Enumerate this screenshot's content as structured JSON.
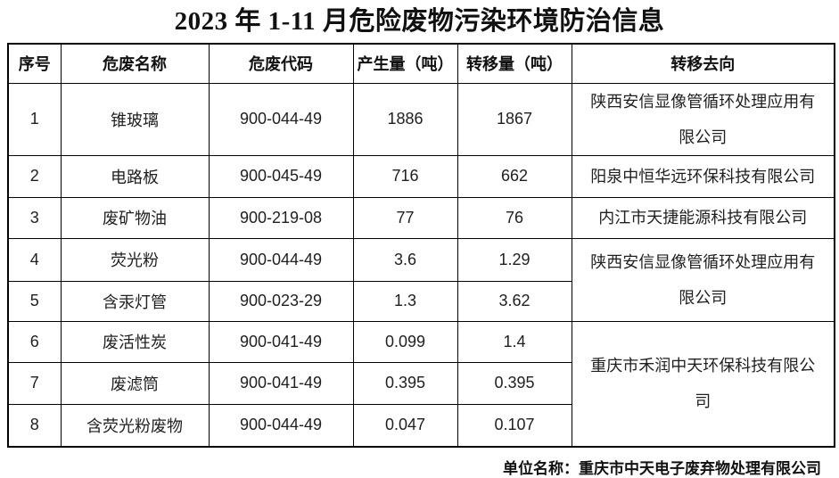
{
  "title": "2023 年 1-11 月危险废物污染环境防治信息",
  "table": {
    "headers": [
      "序号",
      "危废名称",
      "危废代码",
      "产生量（吨）",
      "转移量（吨）",
      "转移去向"
    ],
    "rows": [
      {
        "no": "1",
        "name": "锥玻璃",
        "code": "900-044-49",
        "produced": "1886",
        "transferred": "1867",
        "destination": "陕西安信显像管循环处理应用有限公司",
        "dest_rowspan": 1
      },
      {
        "no": "2",
        "name": "电路板",
        "code": "900-045-49",
        "produced": "716",
        "transferred": "662",
        "destination": "阳泉中恒华远环保科技有限公司",
        "dest_rowspan": 1
      },
      {
        "no": "3",
        "name": "废矿物油",
        "code": "900-219-08",
        "produced": "77",
        "transferred": "76",
        "destination": "内江市天捷能源科技有限公司",
        "dest_rowspan": 1
      },
      {
        "no": "4",
        "name": "荧光粉",
        "code": "900-044-49",
        "produced": "3.6",
        "transferred": "1.29",
        "destination": "陕西安信显像管循环处理应用有限公司",
        "dest_rowspan": 2
      },
      {
        "no": "5",
        "name": "含汞灯管",
        "code": "900-023-29",
        "produced": "1.3",
        "transferred": "3.62",
        "destination": "",
        "dest_rowspan": 0
      },
      {
        "no": "6",
        "name": "废活性炭",
        "code": "900-041-49",
        "produced": "0.099",
        "transferred": "1.4",
        "destination": "重庆市禾润中天环保科技有限公司",
        "dest_rowspan": 3
      },
      {
        "no": "7",
        "name": "废滤筒",
        "code": "900-041-49",
        "produced": "0.395",
        "transferred": "0.395",
        "destination": "",
        "dest_rowspan": 0
      },
      {
        "no": "8",
        "name": "含荧光粉废物",
        "code": "900-044-49",
        "produced": "0.047",
        "transferred": "0.107",
        "destination": "",
        "dest_rowspan": 0
      }
    ]
  },
  "footer": {
    "label": "单位名称：重庆市中天电子废弃物处理有限公司"
  }
}
